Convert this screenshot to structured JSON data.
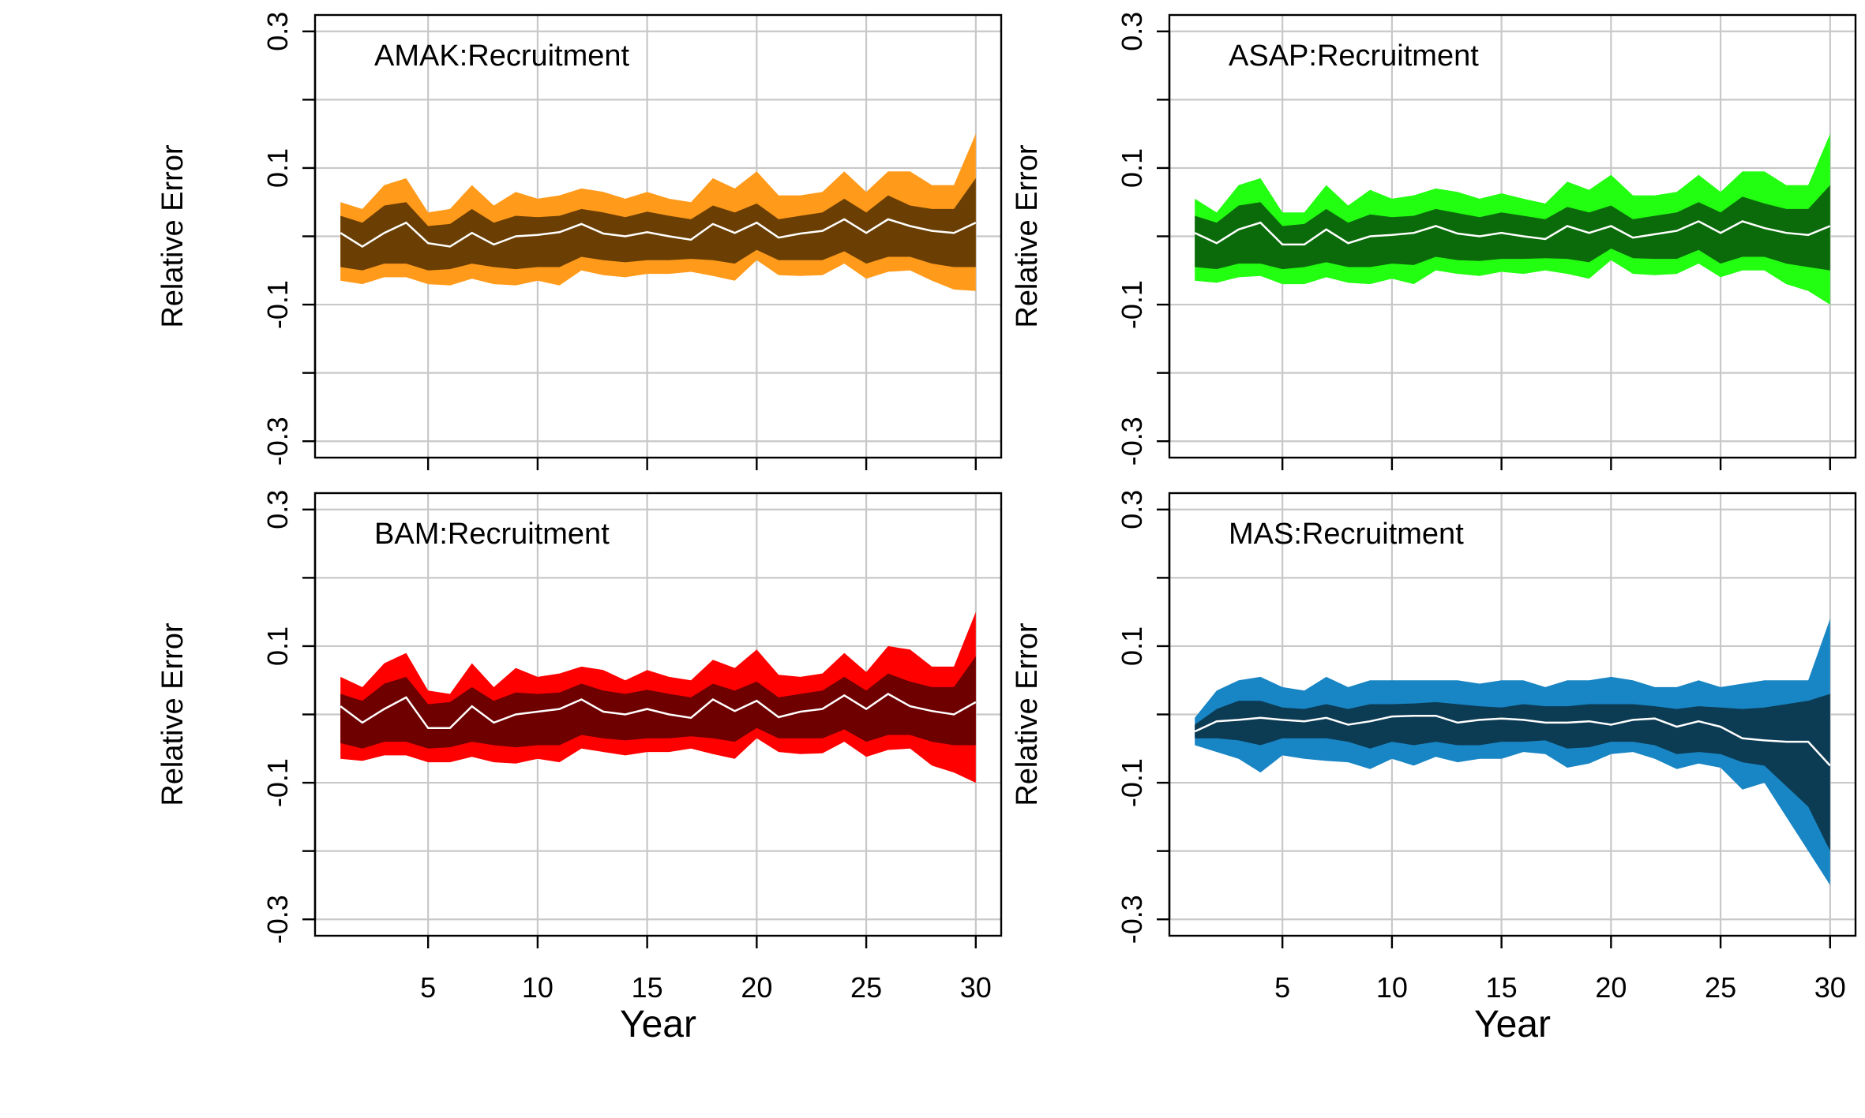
{
  "figure": {
    "ylabel": "Relative Error",
    "xlabel": "Year",
    "x_ticks": [
      5,
      10,
      15,
      20,
      25,
      30
    ],
    "y_ticks": [
      -0.3,
      -0.1,
      0.1,
      0.3
    ],
    "y_tick_labels": [
      "-0.3",
      "-0.1",
      "0.1",
      "0.3"
    ],
    "x_tick_labels": [
      "5",
      "10",
      "15",
      "20",
      "25",
      "30"
    ]
  },
  "chart_data": [
    {
      "type": "area",
      "title": "AMAK:Recruitment",
      "xlabel": "",
      "ylabel": "Relative Error",
      "xlim": [
        1,
        30
      ],
      "ylim": [
        -0.3,
        0.3
      ],
      "grid": true,
      "colors": {
        "outer": "#ff9a1a",
        "inner": "#6b3f04",
        "median": "#ffffff"
      },
      "x": [
        1,
        2,
        3,
        4,
        5,
        6,
        7,
        8,
        9,
        10,
        11,
        12,
        13,
        14,
        15,
        16,
        17,
        18,
        19,
        20,
        21,
        22,
        23,
        24,
        25,
        26,
        27,
        28,
        29,
        30
      ],
      "series": [
        {
          "values": [
            -0.065,
            -0.07,
            -0.06,
            -0.06,
            -0.07,
            -0.072,
            -0.062,
            -0.07,
            -0.072,
            -0.065,
            -0.072,
            -0.05,
            -0.057,
            -0.06,
            -0.055,
            -0.055,
            -0.052,
            -0.058,
            -0.065,
            -0.035,
            -0.057,
            -0.058,
            -0.057,
            -0.04,
            -0.062,
            -0.052,
            -0.05,
            -0.065,
            -0.078,
            -0.08
          ]
        },
        {
          "values": [
            -0.045,
            -0.05,
            -0.04,
            -0.04,
            -0.05,
            -0.048,
            -0.04,
            -0.045,
            -0.048,
            -0.045,
            -0.045,
            -0.03,
            -0.035,
            -0.038,
            -0.035,
            -0.035,
            -0.033,
            -0.035,
            -0.04,
            -0.02,
            -0.035,
            -0.035,
            -0.035,
            -0.022,
            -0.04,
            -0.03,
            -0.03,
            -0.04,
            -0.045,
            -0.045
          ]
        },
        {
          "values": [
            0.005,
            -0.015,
            0.005,
            0.02,
            -0.01,
            -0.015,
            0.005,
            -0.012,
            0.0,
            0.002,
            0.006,
            0.018,
            0.004,
            0.0,
            0.006,
            0.0,
            -0.005,
            0.018,
            0.005,
            0.02,
            -0.002,
            0.004,
            0.008,
            0.025,
            0.005,
            0.025,
            0.015,
            0.008,
            0.005,
            0.02
          ]
        },
        {
          "values": [
            0.03,
            0.02,
            0.045,
            0.05,
            0.015,
            0.018,
            0.04,
            0.02,
            0.03,
            0.028,
            0.03,
            0.04,
            0.035,
            0.028,
            0.036,
            0.03,
            0.025,
            0.045,
            0.035,
            0.048,
            0.025,
            0.03,
            0.035,
            0.055,
            0.035,
            0.06,
            0.045,
            0.04,
            0.04,
            0.085
          ]
        },
        {
          "values": [
            0.05,
            0.04,
            0.075,
            0.085,
            0.035,
            0.04,
            0.075,
            0.045,
            0.065,
            0.055,
            0.06,
            0.07,
            0.065,
            0.055,
            0.065,
            0.055,
            0.05,
            0.085,
            0.07,
            0.095,
            0.06,
            0.06,
            0.065,
            0.095,
            0.065,
            0.095,
            0.095,
            0.075,
            0.075,
            0.15
          ]
        }
      ]
    },
    {
      "type": "area",
      "title": "ASAP:Recruitment",
      "xlabel": "",
      "ylabel": "Relative Error",
      "xlim": [
        1,
        30
      ],
      "ylim": [
        -0.3,
        0.3
      ],
      "grid": true,
      "colors": {
        "outer": "#22ff11",
        "inner": "#0b6b0b",
        "median": "#ffffff"
      },
      "x": [
        1,
        2,
        3,
        4,
        5,
        6,
        7,
        8,
        9,
        10,
        11,
        12,
        13,
        14,
        15,
        16,
        17,
        18,
        19,
        20,
        21,
        22,
        23,
        24,
        25,
        26,
        27,
        28,
        29,
        30
      ],
      "series": [
        {
          "values": [
            -0.065,
            -0.068,
            -0.06,
            -0.058,
            -0.07,
            -0.07,
            -0.06,
            -0.068,
            -0.07,
            -0.062,
            -0.07,
            -0.05,
            -0.055,
            -0.058,
            -0.052,
            -0.055,
            -0.05,
            -0.055,
            -0.062,
            -0.035,
            -0.055,
            -0.057,
            -0.055,
            -0.04,
            -0.06,
            -0.05,
            -0.05,
            -0.07,
            -0.08,
            -0.1
          ]
        },
        {
          "values": [
            -0.045,
            -0.048,
            -0.04,
            -0.04,
            -0.048,
            -0.045,
            -0.038,
            -0.045,
            -0.045,
            -0.04,
            -0.042,
            -0.03,
            -0.035,
            -0.036,
            -0.033,
            -0.033,
            -0.032,
            -0.033,
            -0.038,
            -0.018,
            -0.032,
            -0.033,
            -0.033,
            -0.02,
            -0.04,
            -0.03,
            -0.03,
            -0.04,
            -0.045,
            -0.05
          ]
        },
        {
          "values": [
            0.005,
            -0.01,
            0.01,
            0.02,
            -0.012,
            -0.012,
            0.01,
            -0.01,
            0.0,
            0.002,
            0.005,
            0.015,
            0.004,
            0.0,
            0.005,
            0.0,
            -0.004,
            0.015,
            0.005,
            0.015,
            -0.002,
            0.003,
            0.008,
            0.022,
            0.005,
            0.022,
            0.012,
            0.005,
            0.002,
            0.015
          ]
        },
        {
          "values": [
            0.03,
            0.02,
            0.045,
            0.05,
            0.015,
            0.018,
            0.04,
            0.02,
            0.032,
            0.028,
            0.03,
            0.04,
            0.034,
            0.028,
            0.035,
            0.03,
            0.025,
            0.043,
            0.035,
            0.045,
            0.025,
            0.03,
            0.035,
            0.05,
            0.035,
            0.058,
            0.048,
            0.04,
            0.04,
            0.075
          ]
        },
        {
          "values": [
            0.055,
            0.035,
            0.075,
            0.085,
            0.035,
            0.035,
            0.075,
            0.045,
            0.068,
            0.055,
            0.06,
            0.07,
            0.065,
            0.055,
            0.063,
            0.055,
            0.048,
            0.08,
            0.068,
            0.09,
            0.06,
            0.06,
            0.065,
            0.09,
            0.065,
            0.095,
            0.095,
            0.075,
            0.075,
            0.15
          ]
        }
      ]
    },
    {
      "type": "area",
      "title": "BAM:Recruitment",
      "xlabel": "Year",
      "ylabel": "Relative Error",
      "xlim": [
        1,
        30
      ],
      "ylim": [
        -0.3,
        0.3
      ],
      "grid": true,
      "colors": {
        "outer": "#ff0000",
        "inner": "#6e0000",
        "median": "#ffffff"
      },
      "x": [
        1,
        2,
        3,
        4,
        5,
        6,
        7,
        8,
        9,
        10,
        11,
        12,
        13,
        14,
        15,
        16,
        17,
        18,
        19,
        20,
        21,
        22,
        23,
        24,
        25,
        26,
        27,
        28,
        29,
        30
      ],
      "series": [
        {
          "values": [
            -0.065,
            -0.068,
            -0.06,
            -0.06,
            -0.07,
            -0.07,
            -0.062,
            -0.07,
            -0.072,
            -0.065,
            -0.07,
            -0.05,
            -0.055,
            -0.06,
            -0.055,
            -0.055,
            -0.05,
            -0.058,
            -0.065,
            -0.035,
            -0.055,
            -0.058,
            -0.057,
            -0.04,
            -0.062,
            -0.052,
            -0.05,
            -0.075,
            -0.085,
            -0.1
          ]
        },
        {
          "values": [
            -0.042,
            -0.05,
            -0.04,
            -0.04,
            -0.05,
            -0.048,
            -0.04,
            -0.045,
            -0.048,
            -0.045,
            -0.045,
            -0.03,
            -0.035,
            -0.038,
            -0.035,
            -0.035,
            -0.032,
            -0.035,
            -0.04,
            -0.02,
            -0.035,
            -0.035,
            -0.035,
            -0.022,
            -0.04,
            -0.03,
            -0.03,
            -0.04,
            -0.045,
            -0.045
          ]
        },
        {
          "values": [
            0.012,
            -0.012,
            0.008,
            0.025,
            -0.02,
            -0.02,
            0.012,
            -0.012,
            0.0,
            0.004,
            0.008,
            0.022,
            0.004,
            0.0,
            0.008,
            0.0,
            -0.005,
            0.022,
            0.005,
            0.02,
            -0.004,
            0.004,
            0.008,
            0.028,
            0.008,
            0.03,
            0.012,
            0.005,
            0.0,
            0.018
          ]
        },
        {
          "values": [
            0.03,
            0.02,
            0.045,
            0.055,
            0.015,
            0.018,
            0.04,
            0.02,
            0.032,
            0.03,
            0.032,
            0.045,
            0.035,
            0.03,
            0.036,
            0.03,
            0.025,
            0.045,
            0.035,
            0.048,
            0.025,
            0.03,
            0.035,
            0.055,
            0.035,
            0.06,
            0.048,
            0.04,
            0.04,
            0.085
          ]
        },
        {
          "values": [
            0.055,
            0.04,
            0.075,
            0.09,
            0.035,
            0.03,
            0.075,
            0.04,
            0.068,
            0.055,
            0.06,
            0.07,
            0.065,
            0.05,
            0.065,
            0.055,
            0.05,
            0.08,
            0.068,
            0.095,
            0.058,
            0.055,
            0.06,
            0.09,
            0.062,
            0.1,
            0.095,
            0.07,
            0.07,
            0.15
          ]
        }
      ]
    },
    {
      "type": "area",
      "title": "MAS:Recruitment",
      "xlabel": "Year",
      "ylabel": "Relative Error",
      "xlim": [
        1,
        30
      ],
      "ylim": [
        -0.3,
        0.3
      ],
      "grid": true,
      "colors": {
        "outer": "#1885c4",
        "inner": "#0c3b54",
        "median": "#ffffff"
      },
      "x": [
        1,
        2,
        3,
        4,
        5,
        6,
        7,
        8,
        9,
        10,
        11,
        12,
        13,
        14,
        15,
        16,
        17,
        18,
        19,
        20,
        21,
        22,
        23,
        24,
        25,
        26,
        27,
        28,
        29,
        30
      ],
      "series": [
        {
          "values": [
            -0.045,
            -0.055,
            -0.065,
            -0.085,
            -0.06,
            -0.065,
            -0.068,
            -0.07,
            -0.08,
            -0.065,
            -0.075,
            -0.062,
            -0.07,
            -0.065,
            -0.065,
            -0.055,
            -0.058,
            -0.078,
            -0.072,
            -0.058,
            -0.055,
            -0.065,
            -0.08,
            -0.072,
            -0.078,
            -0.11,
            -0.1,
            -0.15,
            -0.2,
            -0.25
          ]
        },
        {
          "values": [
            -0.035,
            -0.035,
            -0.038,
            -0.045,
            -0.035,
            -0.035,
            -0.035,
            -0.04,
            -0.05,
            -0.04,
            -0.045,
            -0.04,
            -0.045,
            -0.045,
            -0.04,
            -0.04,
            -0.038,
            -0.05,
            -0.048,
            -0.04,
            -0.04,
            -0.045,
            -0.058,
            -0.055,
            -0.058,
            -0.07,
            -0.075,
            -0.105,
            -0.135,
            -0.2
          ]
        },
        {
          "values": [
            -0.025,
            -0.01,
            -0.008,
            -0.005,
            -0.008,
            -0.01,
            -0.005,
            -0.015,
            -0.01,
            -0.003,
            -0.002,
            -0.002,
            -0.012,
            -0.008,
            -0.006,
            -0.008,
            -0.012,
            -0.012,
            -0.01,
            -0.015,
            -0.008,
            -0.006,
            -0.018,
            -0.01,
            -0.018,
            -0.035,
            -0.038,
            -0.04,
            -0.04,
            -0.075
          ]
        },
        {
          "values": [
            -0.015,
            0.008,
            0.02,
            0.02,
            0.01,
            0.008,
            0.015,
            0.008,
            0.015,
            0.015,
            0.016,
            0.018,
            0.015,
            0.012,
            0.01,
            0.015,
            0.012,
            0.012,
            0.015,
            0.015,
            0.015,
            0.012,
            0.008,
            0.012,
            0.01,
            0.008,
            0.01,
            0.015,
            0.02,
            0.03
          ]
        },
        {
          "values": [
            -0.005,
            0.035,
            0.05,
            0.055,
            0.04,
            0.035,
            0.055,
            0.04,
            0.05,
            0.05,
            0.05,
            0.05,
            0.05,
            0.045,
            0.05,
            0.05,
            0.04,
            0.05,
            0.05,
            0.055,
            0.05,
            0.04,
            0.04,
            0.05,
            0.04,
            0.045,
            0.05,
            0.05,
            0.05,
            0.14
          ]
        }
      ]
    }
  ]
}
